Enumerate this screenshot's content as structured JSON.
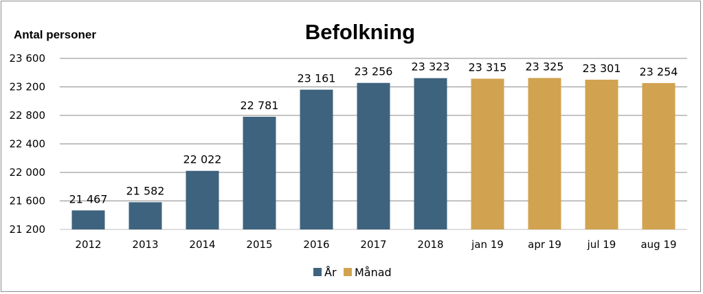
{
  "chart_data": {
    "type": "bar",
    "title": "Befolkning",
    "ylabel": "Antal personer",
    "xlabel": "",
    "categories": [
      "2012",
      "2013",
      "2014",
      "2015",
      "2016",
      "2017",
      "2018",
      "jan 19",
      "apr 19",
      "jul 19",
      "aug 19"
    ],
    "values": [
      21467,
      21582,
      22022,
      22781,
      23161,
      23256,
      23323,
      23315,
      23325,
      23301,
      23254
    ],
    "value_labels": [
      "21 467",
      "21 582",
      "22 022",
      "22 781",
      "23 161",
      "23 256",
      "23 323",
      "23 315",
      "23 325",
      "23 301",
      "23 254"
    ],
    "series_of_category": [
      "År",
      "År",
      "År",
      "År",
      "År",
      "År",
      "År",
      "Månad",
      "Månad",
      "Månad",
      "Månad"
    ],
    "series": [
      {
        "name": "År",
        "color": "#3e637e"
      },
      {
        "name": "Månad",
        "color": "#d1a350"
      }
    ],
    "ylim": [
      21200,
      23600
    ],
    "yticks": [
      21200,
      21600,
      22000,
      22400,
      22800,
      23200,
      23600
    ],
    "ytick_labels": [
      "21 200",
      "21 600",
      "22 000",
      "22 400",
      "22 800",
      "23 200",
      "23 600"
    ],
    "grid": true,
    "legend_position": "bottom"
  }
}
